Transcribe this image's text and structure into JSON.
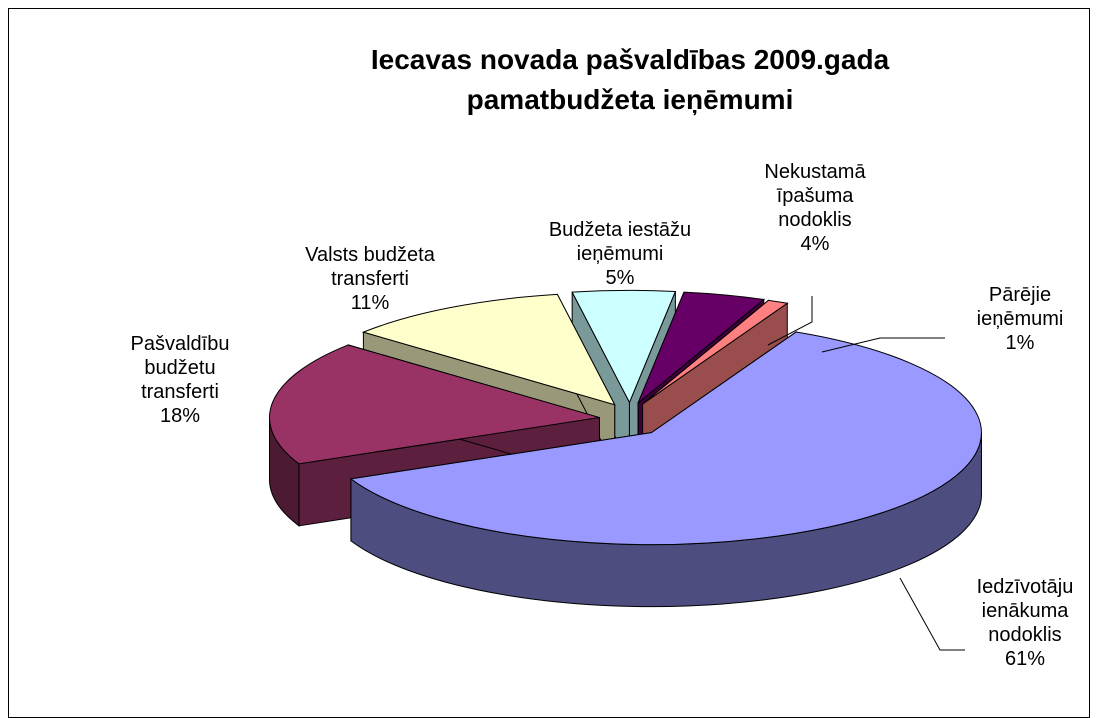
{
  "chart_data": {
    "type": "pie3d",
    "title": "Iecavas novada pašvaldības 2009.gada pamatbudžeta ieņēmumi",
    "categories": [
      "Budžeta iestāžu ieņēmumi",
      "Nekustamā īpašuma nodoklis",
      "Pārējie ieņēmumi",
      "Iedzīvotāju ienākuma nodoklis",
      "Pašvaldību budžetu transferti",
      "Valsts budžeta transferti"
    ],
    "values": [
      5,
      4,
      1,
      61,
      18,
      11
    ],
    "value_labels": [
      "5%",
      "4%",
      "1%",
      "61%",
      "18%",
      "11%"
    ],
    "colors": [
      "#ccffff",
      "#660066",
      "#ff8080",
      "#9999ff",
      "#993366",
      "#ffffcc"
    ]
  }
}
